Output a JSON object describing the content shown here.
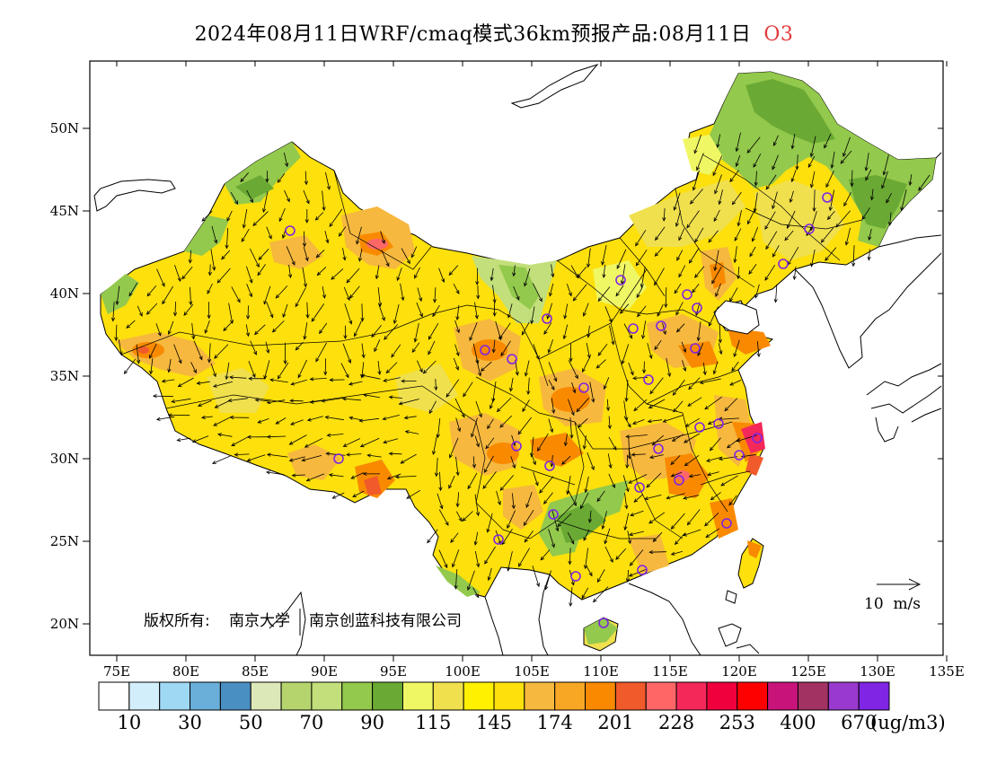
{
  "title": {
    "text": "2024年08月11日WRF/cmaq模式36km预报产品:08月11日",
    "pollutant": "O3",
    "pollutant_color": "#e23b3b"
  },
  "axes": {
    "lat_labels": [
      "50N",
      "45N",
      "40N",
      "35N",
      "30N",
      "25N",
      "20N"
    ],
    "lon_labels": [
      "75E",
      "80E",
      "85E",
      "90E",
      "95E",
      "100E",
      "105E",
      "110E",
      "115E",
      "120E",
      "125E",
      "130E",
      "135E"
    ]
  },
  "colorbar": {
    "colors": [
      "#ffffff",
      "#d3eefb",
      "#9fd8f3",
      "#6aafda",
      "#4a8fc2",
      "#dde8b8",
      "#b5d46e",
      "#c3df7b",
      "#93c94c",
      "#6aaa34",
      "#f0f764",
      "#f0e04e",
      "#fff100",
      "#fde00c",
      "#f6b83e",
      "#f7a724",
      "#f98a00",
      "#f15a2a",
      "#ff6767",
      "#f5285a",
      "#f0003c",
      "#ff0000",
      "#c8137a",
      "#a23261",
      "#9939ce",
      "#7f25e3"
    ],
    "labels": [
      "10",
      "30",
      "50",
      "70",
      "90",
      "115",
      "145",
      "174",
      "201",
      "228",
      "253",
      "400",
      "670"
    ],
    "unit": "(ug/m3)"
  },
  "copyright": {
    "prefix": "版权所有:",
    "org1": "南京大学",
    "org2": "南京创蓝科技有限公司"
  },
  "scale": {
    "label": "10  m/s"
  },
  "region_colors": {
    "base": "#fde00c",
    "hot": "#f6b83e",
    "very_hot": "#f98a00",
    "peak": "#f5285a",
    "green_low": "#93c94c",
    "green_mid": "#c3df7b",
    "green_dark": "#6aaa34",
    "station_circle": "#7f25e3"
  }
}
